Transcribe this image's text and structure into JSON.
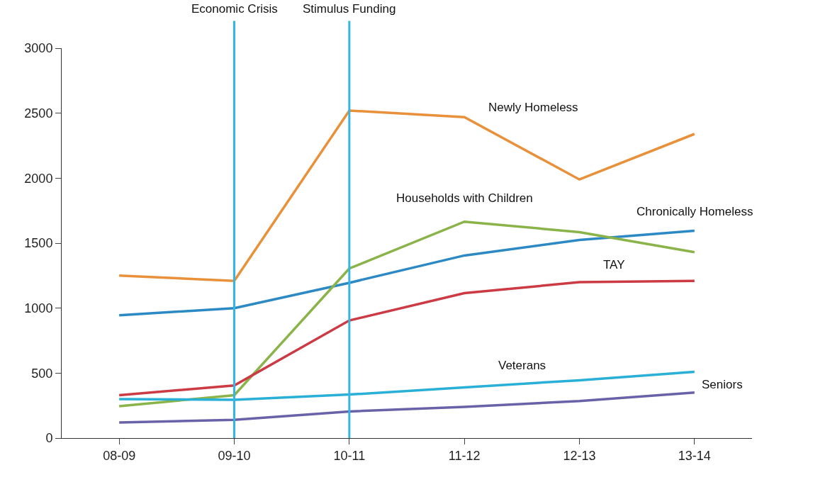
{
  "chart_data": {
    "type": "line",
    "categories": [
      "08-09",
      "09-10",
      "10-11",
      "11-12",
      "12-13",
      "13-14"
    ],
    "series": [
      {
        "name": "Newly Homeless",
        "color": "#e8913a",
        "values": [
          1250,
          1210,
          2520,
          2470,
          1990,
          2340
        ]
      },
      {
        "name": "Chronically Homeless",
        "color": "#2c89c4",
        "values": [
          945,
          1000,
          1195,
          1405,
          1525,
          1595
        ]
      },
      {
        "name": "Households with Children",
        "color": "#8ab34a",
        "values": [
          245,
          330,
          1305,
          1665,
          1585,
          1430
        ]
      },
      {
        "name": "TAY",
        "color": "#cc3a44",
        "values": [
          330,
          405,
          905,
          1115,
          1200,
          1210
        ]
      },
      {
        "name": "Veterans",
        "color": "#2ab0d6",
        "values": [
          300,
          295,
          335,
          390,
          445,
          510
        ]
      },
      {
        "name": "Seniors",
        "color": "#6a62a8",
        "values": [
          120,
          140,
          205,
          240,
          285,
          350
        ]
      }
    ],
    "ylim": [
      0,
      3000
    ],
    "yticks": [
      0,
      500,
      1000,
      1500,
      2000,
      2500,
      3000
    ],
    "grid": false,
    "legend": false,
    "marker": "none",
    "line_style": "solid",
    "ref_lines": [
      {
        "axis": "x",
        "value": "09-10",
        "label": "Economic Crisis",
        "color": "#33b5e5"
      },
      {
        "axis": "x",
        "value": "10-11",
        "label": "Stimulus Funding",
        "color": "#33b5e5"
      }
    ]
  }
}
